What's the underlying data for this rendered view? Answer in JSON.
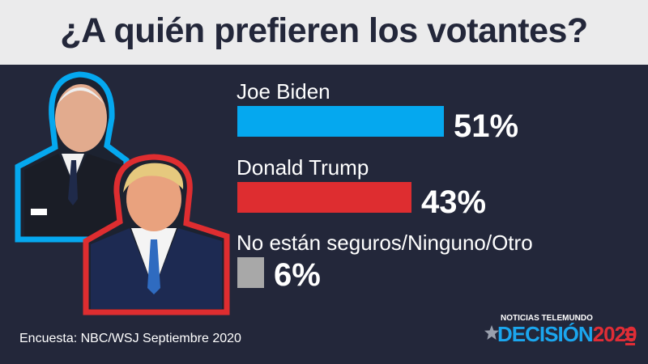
{
  "header": {
    "title": "¿A quién prefieren los votantes?"
  },
  "colors": {
    "biden": "#05a8ef",
    "trump": "#de2d30",
    "other": "#a8a8a8",
    "background": "#23273a"
  },
  "chart_data": {
    "type": "bar",
    "title": "¿A quién prefieren los votantes?",
    "categories": [
      "Joe Biden",
      "Donald Trump",
      "No están seguros/Ninguno/Otro"
    ],
    "values": [
      51,
      43,
      6
    ],
    "value_labels": [
      "51%",
      "43%",
      "6%"
    ],
    "unit": "%",
    "orientation": "horizontal",
    "xlim": [
      0,
      100
    ]
  },
  "footer": {
    "source": "Encuesta: NBC/WSJ Septiembre 2020"
  },
  "logo": {
    "network": "NOTICIAS TELEMUNDO",
    "brand": "DECISIÓN",
    "year": "2020"
  }
}
